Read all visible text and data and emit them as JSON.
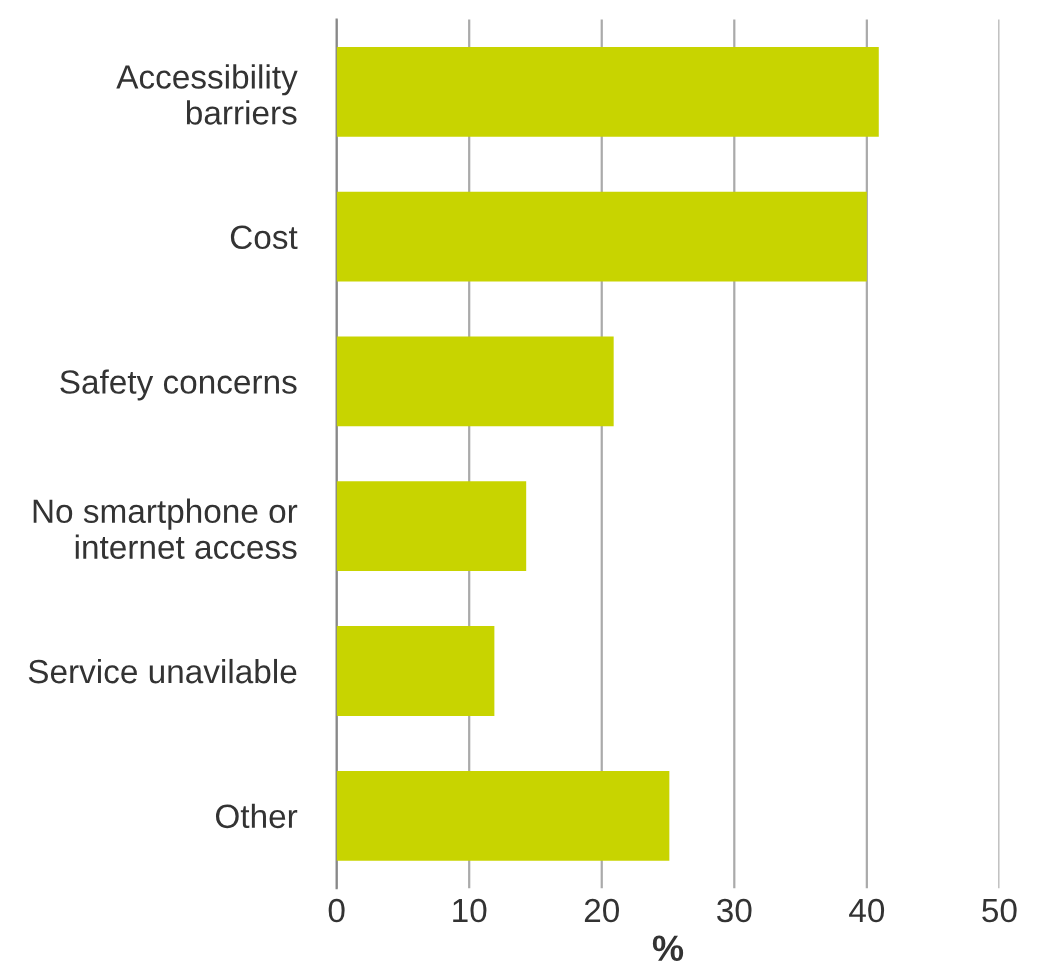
{
  "chart_data": {
    "type": "bar",
    "orientation": "horizontal",
    "xlabel": "%",
    "categories": [
      "Accessibility\nbarriers",
      "Cost",
      "Safety concerns",
      "No smartphone or\ninternet access",
      "Service unavilable",
      "Other"
    ],
    "values": [
      40.9,
      40.0,
      20.9,
      14.3,
      11.9,
      25.1
    ],
    "color": "#c8d400",
    "xlim": [
      0,
      50
    ],
    "xticks": [
      0,
      10,
      20,
      30,
      40,
      50
    ],
    "grid": "x"
  }
}
